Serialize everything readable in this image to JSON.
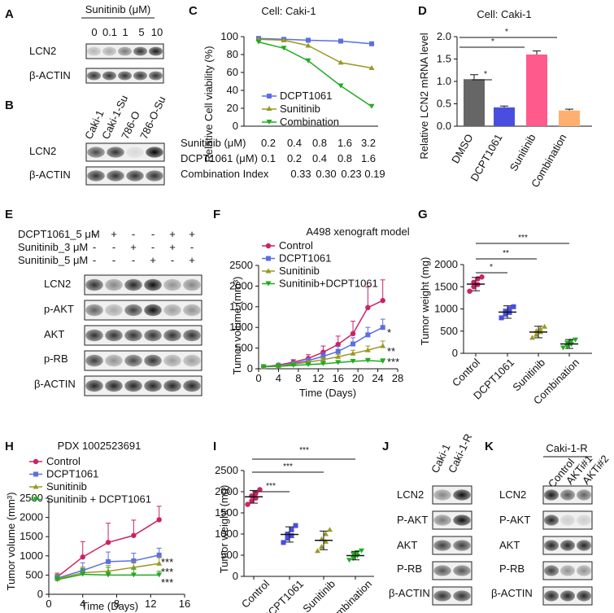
{
  "panels": {
    "A": {
      "letter": "A",
      "header": "Sunitinib (μM)",
      "lanes": [
        "0",
        "0.1",
        "1",
        "5",
        "10"
      ],
      "rows": [
        "LCN2",
        "β-ACTIN"
      ],
      "bands": [
        [
          0.25,
          0.3,
          0.5,
          0.8,
          0.9
        ],
        [
          0.8,
          0.8,
          0.8,
          0.8,
          0.8
        ]
      ]
    },
    "B": {
      "letter": "B",
      "lanes": [
        "Caki-1",
        "Caki-1-Su",
        "786-O",
        "786-O-Su"
      ],
      "rows": [
        "LCN2",
        "β-ACTIN"
      ],
      "bands": [
        [
          0.7,
          0.8,
          0.1,
          1.0
        ],
        [
          0.8,
          0.8,
          0.8,
          0.8
        ]
      ]
    },
    "C": {
      "letter": "C",
      "title": "Cell: Caki-1",
      "ylabel": "Relative Cell viability (%)",
      "yticks": [
        "0",
        "20",
        "40",
        "60",
        "80",
        "100"
      ],
      "legend": [
        "DCPT1061",
        "Sunitinib",
        "Combination"
      ],
      "table": [
        {
          "label": "Sunitinib (μM)",
          "values": [
            "0.2",
            "0.4",
            "0.8",
            "1.6",
            "3.2"
          ]
        },
        {
          "label": "DCPT1061 (μM)",
          "values": [
            "0.1",
            "0.2",
            "0.4",
            "0.8",
            "1.6"
          ]
        },
        {
          "label": "Combination Index",
          "values": [
            "",
            "0.33",
            "0.30",
            "0.23",
            "0.19"
          ]
        }
      ]
    },
    "D": {
      "letter": "D",
      "title": "Cell: Caki-1",
      "ylabel": "Relative LCN2 mRNA level",
      "yticks": [
        "0.0",
        "0.5",
        "1.0",
        "1.5",
        "2.0"
      ],
      "categories": [
        "DMSO",
        "DCPT1061",
        "Sunitinib",
        "Combination"
      ],
      "sig": [
        "*",
        "*",
        "*"
      ]
    },
    "E": {
      "letter": "E",
      "treatments": [
        {
          "label": "DCPT1061_5 μM",
          "signs": [
            "-",
            "+",
            "-",
            "-",
            "+",
            "+"
          ]
        },
        {
          "label": "Sunitinib_3 μM",
          "signs": [
            "-",
            "-",
            "+",
            "-",
            "+",
            "-"
          ]
        },
        {
          "label": "Sunitinib_5 μM",
          "signs": [
            "-",
            "-",
            "-",
            "+",
            "-",
            "+"
          ]
        }
      ],
      "rows": [
        "LCN2",
        "p-AKT",
        "AKT",
        "p-RB",
        "β-ACTIN"
      ],
      "bands": [
        [
          0.8,
          0.45,
          0.85,
          0.95,
          0.4,
          0.45
        ],
        [
          0.6,
          0.3,
          0.75,
          0.95,
          0.35,
          0.4
        ],
        [
          0.8,
          0.8,
          0.8,
          0.8,
          0.8,
          0.8
        ],
        [
          0.75,
          0.4,
          0.7,
          0.8,
          0.35,
          0.35
        ],
        [
          0.85,
          0.85,
          0.85,
          0.85,
          0.85,
          0.85
        ]
      ]
    },
    "F": {
      "letter": "F",
      "title": "A498 xenograft model",
      "xlabel": "Time (Days)",
      "ylabel": "Tumor volume (mm³)",
      "xticks": [
        "0",
        "4",
        "8",
        "12",
        "16",
        "20",
        "24",
        "28"
      ],
      "yticks": [
        "0",
        "500",
        "1000",
        "1500",
        "2000",
        "2500"
      ],
      "legend": [
        "Control",
        "DCPT1061",
        "Sunitinib",
        "Sunitinib+DCPT1061"
      ],
      "sig": [
        "*",
        "**",
        "***"
      ]
    },
    "G": {
      "letter": "G",
      "ylabel": "Tumor weight (mg)",
      "yticks": [
        "0",
        "500",
        "1000",
        "1500",
        "2000"
      ],
      "categories": [
        "Control",
        "DCPT1061",
        "Sunitinib",
        "Combination"
      ],
      "sig": [
        "*",
        "**",
        "***"
      ]
    },
    "H": {
      "letter": "H",
      "title": "PDX 1002523691",
      "xlabel": "Time (Days)",
      "ylabel": "Tumor volume (mm³)",
      "xticks": [
        "0",
        "4",
        "8",
        "12",
        "16"
      ],
      "yticks": [
        "0",
        "500",
        "1000",
        "1500",
        "2000",
        "2500"
      ],
      "legend": [
        "Control",
        "DCPT1061",
        "Sunitinib",
        "Sunitinib + DCPT1061"
      ],
      "sig": [
        "***",
        "***",
        "***"
      ]
    },
    "I": {
      "letter": "I",
      "ylabel": "Tumor weight (mg)",
      "yticks": [
        "0",
        "500",
        "1000",
        "1500",
        "2000",
        "2500"
      ],
      "categories": [
        "Control",
        "DCPT1061",
        "Sunitinib",
        "Combination"
      ],
      "sig": [
        "***",
        "***",
        "***"
      ]
    },
    "J": {
      "letter": "J",
      "lanes": [
        "Caki-1",
        "Caki-1-R"
      ],
      "rows": [
        "LCN2",
        "P-AKT",
        "AKT",
        "P-RB",
        "β-ACTIN"
      ],
      "bands": [
        [
          0.45,
          0.95
        ],
        [
          0.5,
          0.95
        ],
        [
          0.75,
          0.75
        ],
        [
          0.65,
          0.65
        ],
        [
          0.8,
          0.8
        ]
      ]
    },
    "K": {
      "letter": "K",
      "group": "Caki-1-R",
      "lanes": [
        "Control",
        "AKTi#1",
        "AKTi#2"
      ],
      "rows": [
        "LCN2",
        "P-AKT",
        "AKT",
        "P-RB",
        "β-ACTIN"
      ],
      "bands": [
        [
          0.9,
          0.65,
          0.6
        ],
        [
          0.85,
          0.15,
          0.15
        ],
        [
          0.85,
          0.85,
          0.85
        ],
        [
          0.75,
          0.4,
          0.4
        ],
        [
          0.85,
          0.85,
          0.85
        ]
      ]
    }
  },
  "colors": {
    "control": "#cc2266",
    "dcpt1061": "#5b6fe0",
    "sunitinib": "#999922",
    "combination": "#22aa22",
    "d_dmso": "#666666",
    "d_dcpt": "#4a4ee0",
    "d_sun": "#ff5a8c",
    "d_comb": "#ffb070"
  },
  "chart_data": [
    {
      "panel": "C",
      "type": "line",
      "title": "Cell: Caki-1",
      "xlabel": "",
      "ylabel": "Relative Cell viability (%)",
      "x": [
        1,
        2,
        3,
        4,
        5
      ],
      "ylim": [
        0,
        100
      ],
      "series": [
        {
          "name": "DCPT1061",
          "values": [
            98,
            97,
            96,
            95,
            92
          ]
        },
        {
          "name": "Sunitinib",
          "values": [
            97,
            96,
            90,
            71,
            65
          ]
        },
        {
          "name": "Combination",
          "values": [
            94,
            87,
            73,
            45,
            22
          ]
        }
      ]
    },
    {
      "panel": "D",
      "type": "bar",
      "title": "Cell: Caki-1",
      "ylabel": "Relative LCN2 mRNA level",
      "categories": [
        "DMSO",
        "DCPT1061",
        "Sunitinib",
        "Combination"
      ],
      "values": [
        1.05,
        0.42,
        1.6,
        0.35
      ],
      "errors": [
        0.1,
        0.03,
        0.08,
        0.03
      ],
      "ylim": [
        0,
        2
      ]
    },
    {
      "panel": "F",
      "type": "line",
      "title": "A498 xenograft model",
      "xlabel": "Time (Days)",
      "ylabel": "Tumor volume (mm³)",
      "x": [
        1,
        4,
        7,
        10,
        13,
        16,
        19,
        22,
        25
      ],
      "xlim": [
        0,
        28
      ],
      "ylim": [
        0,
        2500
      ],
      "series": [
        {
          "name": "Control",
          "values": [
            50,
            90,
            160,
            250,
            400,
            590,
            850,
            1480,
            1650
          ],
          "errors": [
            20,
            40,
            60,
            90,
            150,
            200,
            300,
            500,
            500
          ]
        },
        {
          "name": "DCPT1061",
          "values": [
            50,
            80,
            130,
            200,
            300,
            420,
            600,
            820,
            1000
          ],
          "errors": [
            20,
            30,
            40,
            60,
            90,
            120,
            150,
            180,
            200
          ]
        },
        {
          "name": "Sunitinib",
          "values": [
            50,
            70,
            110,
            160,
            220,
            290,
            370,
            450,
            550
          ],
          "errors": [
            15,
            20,
            30,
            40,
            50,
            60,
            80,
            100,
            120
          ]
        },
        {
          "name": "Sunitinib+DCPT1061",
          "values": [
            50,
            60,
            80,
            100,
            120,
            150,
            180,
            200,
            180
          ],
          "errors": [
            10,
            15,
            20,
            25,
            30,
            35,
            40,
            50,
            60
          ]
        }
      ]
    },
    {
      "panel": "G",
      "type": "scatter",
      "ylabel": "Tumor weight (mg)",
      "categories": [
        "Control",
        "DCPT1061",
        "Sunitinib",
        "Combination"
      ],
      "means": [
        1560,
        930,
        480,
        210
      ],
      "sd": [
        150,
        140,
        130,
        100
      ],
      "ylim": [
        0,
        2000
      ],
      "points": [
        [
          1400,
          1500,
          1550,
          1600,
          1680,
          1720
        ],
        [
          800,
          880,
          920,
          950,
          1000,
          1050
        ],
        [
          350,
          420,
          480,
          500,
          550,
          600
        ],
        [
          120,
          150,
          200,
          230,
          270,
          300
        ]
      ]
    },
    {
      "panel": "H",
      "type": "line",
      "title": "PDX 1002523691",
      "xlabel": "Time (Days)",
      "ylabel": "Tumor volume (mm³)",
      "x": [
        1,
        4,
        7,
        10,
        13
      ],
      "xlim": [
        0,
        16
      ],
      "ylim": [
        0,
        2500
      ],
      "series": [
        {
          "name": "Control",
          "values": [
            450,
            970,
            1350,
            1530,
            1940
          ],
          "errors": [
            100,
            400,
            500,
            400,
            350
          ]
        },
        {
          "name": "DCPT1061",
          "values": [
            420,
            620,
            850,
            870,
            1020
          ],
          "errors": [
            100,
            200,
            250,
            200,
            180
          ]
        },
        {
          "name": "Sunitinib",
          "values": [
            400,
            560,
            600,
            700,
            800
          ],
          "errors": [
            100,
            150,
            150,
            150,
            150
          ]
        },
        {
          "name": "Sunitinib + DCPT1061",
          "values": [
            380,
            520,
            500,
            500,
            500
          ],
          "errors": [
            100,
            150,
            200,
            150,
            100
          ]
        }
      ]
    },
    {
      "panel": "I",
      "type": "scatter",
      "ylabel": "Tumor weight (mg)",
      "categories": [
        "Control",
        "DCPT1061",
        "Sunitinib",
        "Combination"
      ],
      "means": [
        1880,
        990,
        850,
        490
      ],
      "sd": [
        150,
        180,
        220,
        100
      ],
      "ylim": [
        0,
        2500
      ],
      "points": [
        [
          1700,
          1780,
          1850,
          1900,
          1960,
          2050
        ],
        [
          800,
          900,
          960,
          1000,
          1100,
          1200
        ],
        [
          600,
          700,
          820,
          880,
          1000,
          1100
        ],
        [
          380,
          420,
          480,
          520,
          560,
          600
        ]
      ]
    }
  ]
}
